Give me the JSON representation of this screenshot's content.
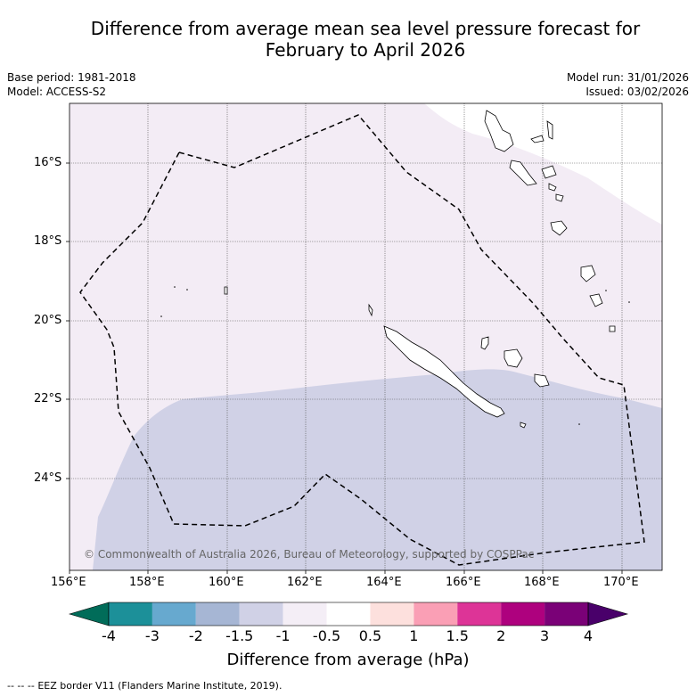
{
  "header": {
    "title_line1": "Difference from average mean sea level pressure forecast for",
    "title_line2": "February to April 2026",
    "base_period": "Base period: 1981-2018",
    "model": "Model: ACCESS-S2",
    "model_run": "Model run: 31/01/2026",
    "issued": "Issued: 03/02/2026"
  },
  "map": {
    "lat_ticks": [
      "16°S",
      "18°S",
      "20°S",
      "22°S",
      "24°S"
    ],
    "lon_ticks": [
      "156°E",
      "158°E",
      "160°E",
      "162°E",
      "164°E",
      "166°E",
      "168°E",
      "170°E"
    ],
    "copyright": "© Commonwealth of Australia 2026, Bureau of Meteorology, supported by COSPPac",
    "fill_colors": {
      "neutral_low": "#f3ecf5",
      "minus_1_5": "#d0d1e6",
      "edge": "#e2cfe6"
    }
  },
  "colorbar": {
    "labels": [
      "-4",
      "-3",
      "-2",
      "-1.5",
      "-1",
      "-0.5",
      "0.5",
      "1",
      "1.5",
      "2",
      "3",
      "4"
    ],
    "colors": [
      "#016c59",
      "#1c9099",
      "#67a9cf",
      "#a6b6d4",
      "#d0d1e6",
      "#f4eef6",
      "#ffffff",
      "#fde0dd",
      "#fa9fb5",
      "#dd3497",
      "#ae017e",
      "#7a0177",
      "#49006a"
    ],
    "xlabel": "Difference from average (hPa)"
  },
  "legend": {
    "marker": "-- -- --",
    "text": "EEZ border V11 (Flanders Marine Institute, 2019)."
  }
}
